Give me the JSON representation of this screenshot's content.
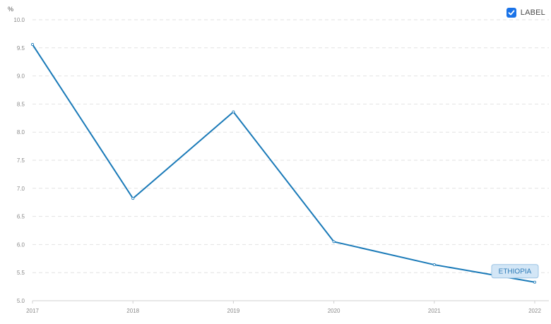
{
  "legend": {
    "label": "LABEL",
    "checked": true,
    "checkbox_color": "#1a73e8"
  },
  "chart_data": {
    "type": "line",
    "ylabel": "%",
    "ylim": [
      5.0,
      10.0
    ],
    "yticks": [
      "5.0",
      "5.5",
      "6.0",
      "6.5",
      "7.0",
      "7.5",
      "8.0",
      "8.5",
      "9.0",
      "9.5",
      "10.0"
    ],
    "grid": "horizontal-dashed",
    "categories": [
      "2017",
      "2018",
      "2019",
      "2020",
      "2021",
      "2022"
    ],
    "series": [
      {
        "name": "ETHIOPIA",
        "values": [
          9.56,
          6.82,
          8.36,
          6.05,
          5.64,
          5.33
        ],
        "color": "#1a7ab8",
        "label_color": "#2f7cb8",
        "label_fill": "#d3e6f6"
      }
    ]
  }
}
